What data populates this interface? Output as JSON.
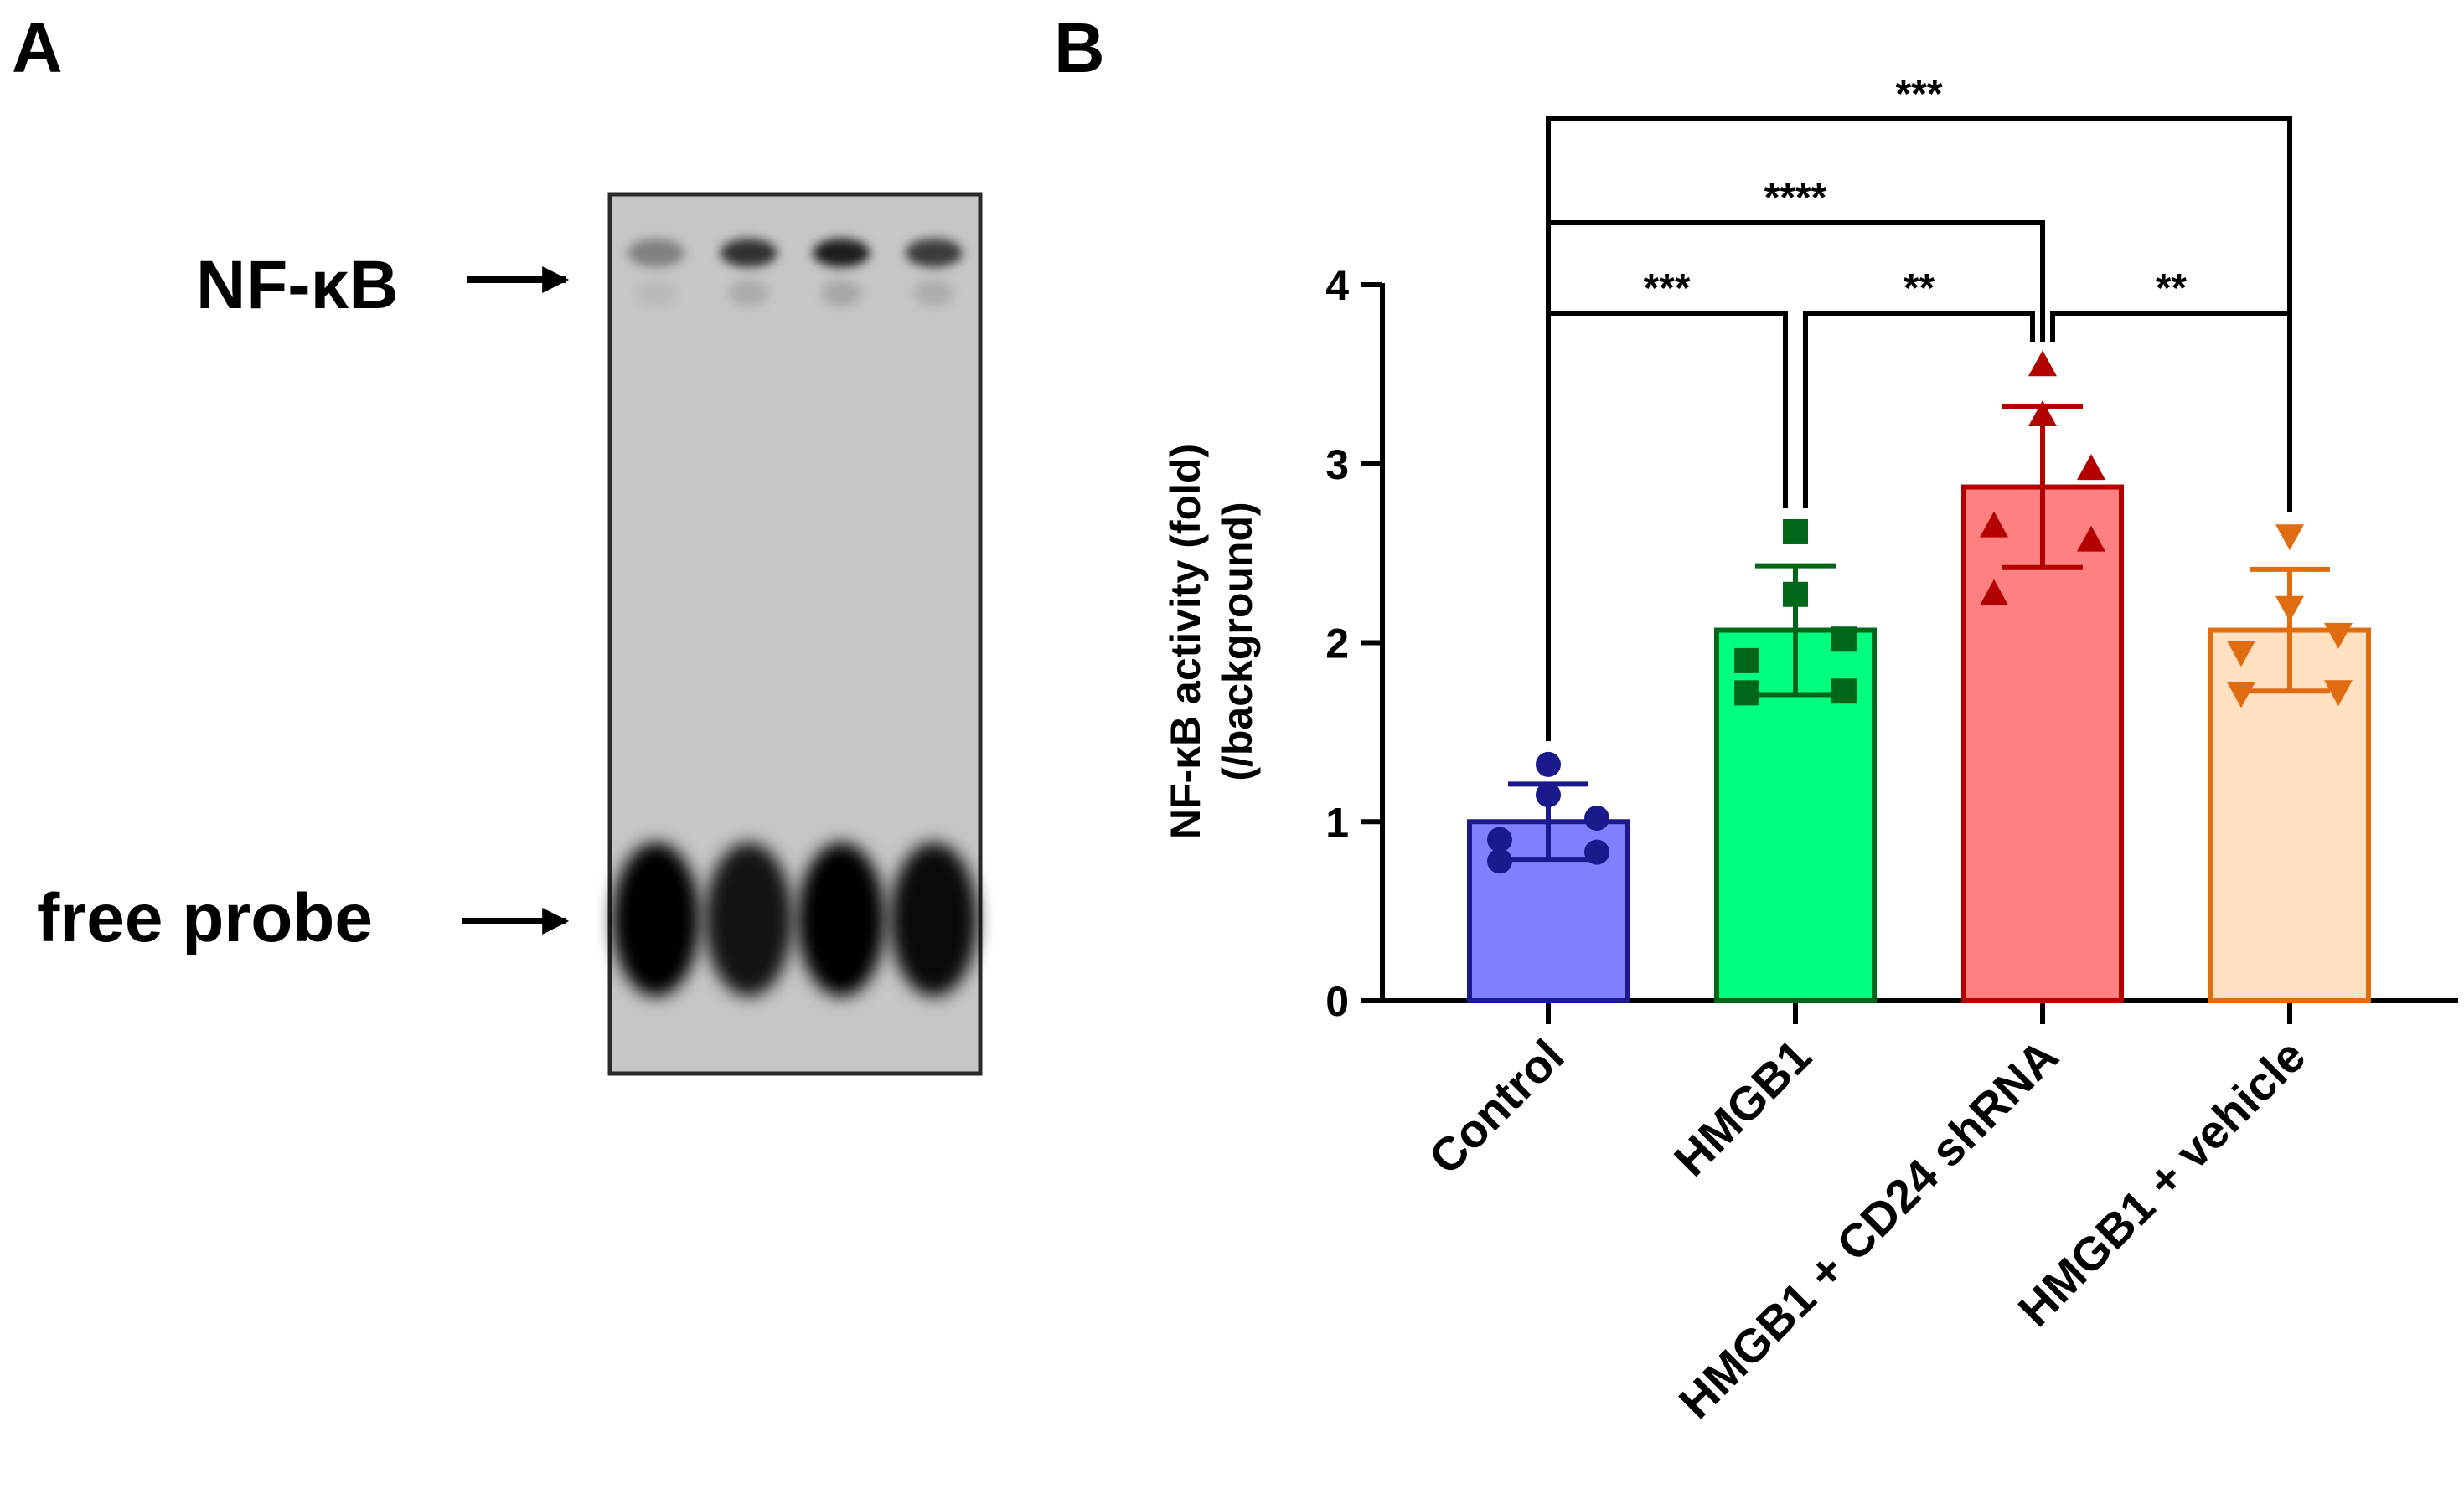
{
  "panels": {
    "a": {
      "letter": "A"
    },
    "b": {
      "letter": "B"
    }
  },
  "gel": {
    "lane_count": 4,
    "labels": {
      "top": "NF-κB",
      "bottom": "free probe"
    },
    "band_intensity": {
      "nfkb": [
        0.35,
        0.75,
        0.85,
        0.7
      ],
      "free_probe": [
        1.0,
        0.9,
        1.0,
        0.95
      ]
    }
  },
  "chart_data": {
    "type": "bar",
    "categories": [
      "Control",
      "HMGB1",
      "HMGB1 + CD24 shRNA",
      "HMGB1 + vehicle"
    ],
    "values": [
      1.0,
      2.07,
      2.87,
      2.07
    ],
    "error": [
      0.21,
      0.36,
      0.45,
      0.34
    ],
    "points": [
      [
        0.78,
        0.83,
        0.9,
        1.02,
        1.15,
        1.32
      ],
      [
        1.72,
        1.73,
        1.9,
        2.02,
        2.27,
        2.62
      ],
      [
        2.27,
        2.57,
        2.65,
        2.97,
        3.27,
        3.55
      ],
      [
        1.72,
        1.73,
        1.95,
        2.05,
        2.2,
        2.6
      ]
    ],
    "markers": [
      "circle",
      "square",
      "triangle-up",
      "triangle-down"
    ],
    "colors": {
      "fill": [
        "#8080ff",
        "#00ff80",
        "#ff8080",
        "#ffe0c0"
      ],
      "stroke": [
        "#1a1a8c",
        "#00661a",
        "#b30000",
        "#e06c12"
      ]
    },
    "ylabel": "NF-κB activity (fold)",
    "ylabel2": "(/background)",
    "xlabel": "",
    "ylim": [
      0,
      4
    ],
    "yticks": [
      0,
      1,
      2,
      3,
      4
    ],
    "grid": false,
    "significance": [
      {
        "from": 0,
        "to": 3,
        "label": "***",
        "level": 3
      },
      {
        "from": 0,
        "to": 2,
        "label": "****",
        "level": 2
      },
      {
        "from": 0,
        "to": 1,
        "label": "***",
        "level": 1
      },
      {
        "from": 1,
        "to": 2,
        "label": "**",
        "level": 1
      },
      {
        "from": 2,
        "to": 3,
        "label": "**",
        "level": 1
      }
    ]
  }
}
